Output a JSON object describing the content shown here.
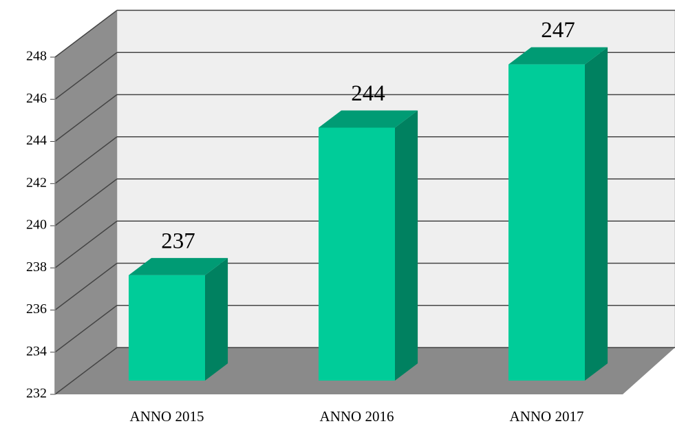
{
  "chart_data": {
    "type": "bar3d",
    "categories": [
      "ANNO 2015",
      "ANNO 2016",
      "ANNO 2017"
    ],
    "values": [
      237,
      244,
      247
    ],
    "color": "#00cc99",
    "ylim": [
      232,
      248
    ],
    "yticks": [
      232,
      234,
      236,
      238,
      240,
      242,
      244,
      246,
      248
    ],
    "grid": true
  }
}
